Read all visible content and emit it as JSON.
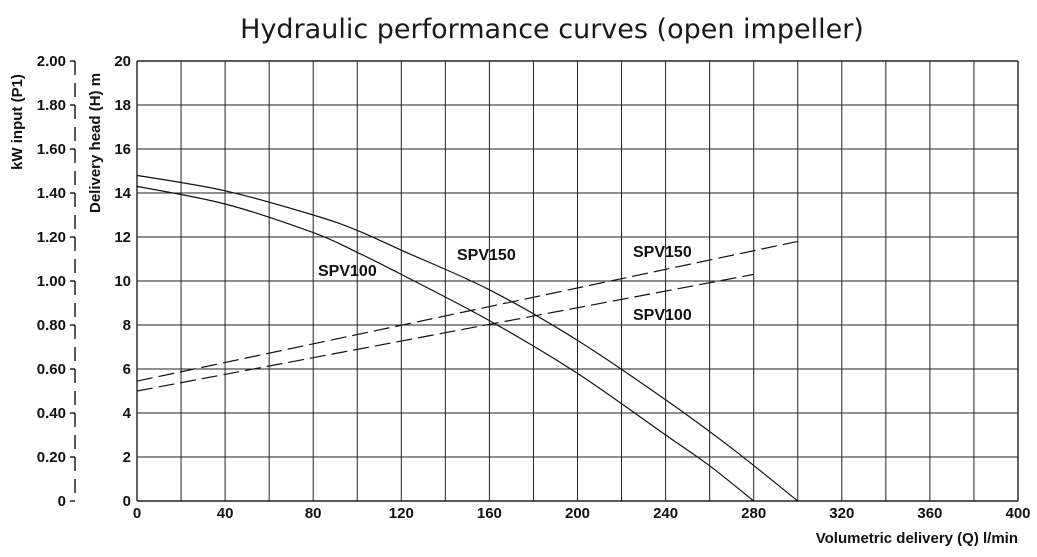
{
  "chart_data": {
    "type": "line",
    "title": "Hydraulic performance curves (open impeller)",
    "xlabel": "Volumetric delivery (Q) l/min",
    "ylabel": "Delivery head (H) m",
    "y2label": "kW input (P1)",
    "xlim": [
      0,
      400
    ],
    "ylim": [
      0,
      20
    ],
    "y2lim": [
      0,
      2.0
    ],
    "grid": true,
    "x_ticks": [
      "0",
      "40",
      "80",
      "120",
      "160",
      "200",
      "240",
      "280",
      "320",
      "360",
      "400"
    ],
    "y_ticks": [
      "0",
      "2",
      "4",
      "6",
      "8",
      "10",
      "12",
      "14",
      "16",
      "18",
      "20"
    ],
    "y2_ticks": [
      "0",
      "0.20",
      "0.40",
      "0.60",
      "0.80",
      "1.00",
      "1.20",
      "1.40",
      "1.60",
      "1.80",
      "2.00"
    ],
    "series": [
      {
        "name": "SPV150",
        "kind": "head",
        "axis": "left",
        "style": "solid",
        "x": [
          0,
          40,
          80,
          100,
          120,
          160,
          200,
          240,
          270,
          300
        ],
        "y": [
          14.8,
          14.1,
          13.0,
          12.3,
          11.4,
          9.6,
          7.3,
          4.6,
          2.4,
          0
        ]
      },
      {
        "name": "SPV100",
        "kind": "head",
        "axis": "left",
        "style": "solid",
        "x": [
          0,
          40,
          80,
          100,
          120,
          160,
          200,
          240,
          260,
          280
        ],
        "y": [
          14.3,
          13.5,
          12.2,
          11.3,
          10.3,
          8.2,
          5.8,
          3.0,
          1.6,
          0
        ]
      },
      {
        "name": "SPV150",
        "kind": "power",
        "axis": "right",
        "style": "dashed",
        "x": [
          0,
          300
        ],
        "y": [
          0.545,
          1.18
        ]
      },
      {
        "name": "SPV100",
        "kind": "power",
        "axis": "right",
        "style": "dashed",
        "x": [
          0,
          280
        ],
        "y": [
          0.5,
          1.03
        ]
      }
    ],
    "annotations": [
      "SPV100",
      "SPV150",
      "SPV150",
      "SPV100"
    ]
  }
}
